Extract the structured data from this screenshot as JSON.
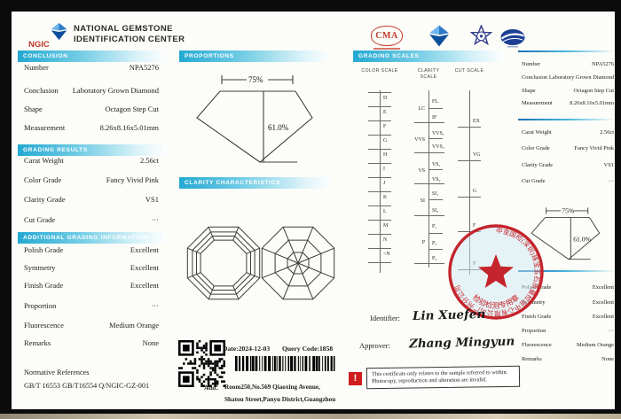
{
  "header": {
    "ngic_label": "NGIC",
    "org_line1": "NATIONAL GEMSTONE",
    "org_line2": "IDENTIFICATION CENTER",
    "cma_label": "CMA"
  },
  "left": {
    "sections": [
      {
        "title": "CONCLUSION",
        "rows": [
          [
            "Number",
            "NPA5276"
          ],
          [
            "Conclusion",
            "Laboratory Grown Diamond"
          ],
          [
            "Shape",
            "Octagon Step Cut"
          ],
          [
            "Measurement",
            "8.26x8.16x5.01mm"
          ]
        ]
      },
      {
        "title": "GRADING RESULTS",
        "rows": [
          [
            "Carat Weight",
            "2.56ct"
          ],
          [
            "Color Grade",
            "Fancy Vivid Pink"
          ],
          [
            "Clarity Grade",
            "VS1"
          ],
          [
            "Cut Grade",
            "···"
          ]
        ]
      },
      {
        "title": "ADDITIONAL GRADING INFORMATION",
        "rows": [
          [
            "Polish Grade",
            "Excellent"
          ],
          [
            "Symmetry",
            "Excellent"
          ],
          [
            "Finish Grade",
            "Excellent"
          ],
          [
            "Proportion",
            "···"
          ],
          [
            "Fluorescence",
            "Medium Orange"
          ],
          [
            "Remarks",
            "None"
          ]
        ]
      }
    ],
    "normative_title": "Normative References",
    "normative_refs": "GB/T 16553   GB/T16554   Q/NGIC-GZ-001"
  },
  "proportions": {
    "title": "PROPORTIONS",
    "table_pct": "75%",
    "depth_pct": "61.0%"
  },
  "clarity_section": {
    "title": "CLARITY CHARACTERISTICS"
  },
  "scales": {
    "title": "GRADING SCALES",
    "color": {
      "label": "COLOR SCALE",
      "grades": [
        "D",
        "E",
        "F",
        "G",
        "H",
        "I",
        "J",
        "K",
        "L",
        "M",
        "N",
        "<N"
      ]
    },
    "clarity": {
      "label": "CLARITY SCALE",
      "groups": [
        {
          "name": "LC",
          "subs": [
            "FL",
            "IF"
          ]
        },
        {
          "name": "VVS",
          "subs": [
            "VVS₁",
            "VVS₂"
          ]
        },
        {
          "name": "VS",
          "subs": [
            "VS₁",
            "VS₂"
          ]
        },
        {
          "name": "SI",
          "subs": [
            "SI₁",
            "SI₂"
          ]
        },
        {
          "name": "P",
          "subs": [
            "P₁",
            "P₂",
            "P₃"
          ]
        }
      ]
    },
    "cut": {
      "label": "CUT SCALE",
      "grades": [
        "EX",
        "VG",
        "G",
        "F",
        "P"
      ]
    }
  },
  "right_panel": {
    "rows1": [
      [
        "Number",
        "NPA5276"
      ],
      [
        "Conclusion",
        "Laboratory Grown Diamond"
      ],
      [
        "Shape",
        "Octagon Step Cut"
      ],
      [
        "Measurement",
        "8.26x8.16x5.01mm"
      ]
    ],
    "rows2": [
      [
        "Carat Weight",
        "2.56ct"
      ],
      [
        "Color Grade",
        "Fancy Vivid Pink"
      ],
      [
        "Clarity Grade",
        "VS1"
      ],
      [
        "Cut Grade",
        "···"
      ]
    ],
    "rows3": [
      [
        "Polish Grade",
        "Excellent"
      ],
      [
        "Symmetry",
        "Excellent"
      ],
      [
        "Finish Grade",
        "Excellent"
      ],
      [
        "Proportion",
        "···"
      ],
      [
        "Fluorescence",
        "Medium Orange"
      ],
      [
        "Remarks",
        "None"
      ]
    ]
  },
  "footer": {
    "date_label": "Date:2024-12-03",
    "query_label": "Query Code:1858",
    "address_prefix": "Add：",
    "address_line1": "Room250,No.569  Qiaoxing  Avenue,",
    "address_line2": "Shatou Street,Panyu District,Guangzhou"
  },
  "signatures": {
    "identifier_label": "Identifier:",
    "identifier_name": "Lin Xuefen",
    "approver_label": "Approver:",
    "approver_name": "Zhang Mingyun"
  },
  "stamp": {
    "ring_text": "中金国检(深圳)珠宝玉石质量检验中心有限公司广州分公司",
    "bottom_text": "检验检测专用章"
  },
  "notice": {
    "icon": "!",
    "text": "This certificate only relates to the sample referred to within. Photocopy, reproduction and alteration are invalid."
  },
  "colors": {
    "accent_cyan": "#23a9d2",
    "divider_blue": "#1c6fb5",
    "stamp_red": "#c4242b",
    "ngic_red": "#c0392b",
    "logo_blue": "#0c4f9c",
    "warning_red": "#cf1d1d"
  }
}
